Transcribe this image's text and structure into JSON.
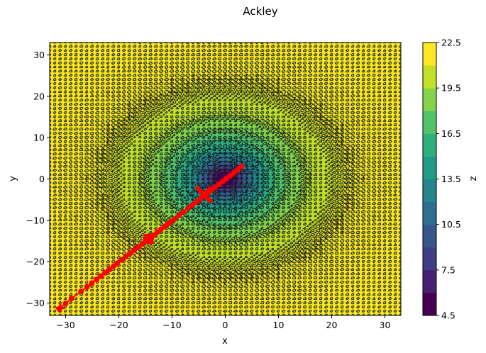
{
  "chart_data": {
    "type": "contour",
    "title": "Ackley",
    "xlabel": "x",
    "ylabel": "y",
    "colorbar_label": "z",
    "xlim": [
      -33,
      33
    ],
    "ylim": [
      -33,
      33
    ],
    "xticks": [
      -30,
      -20,
      -10,
      0,
      10,
      20,
      30
    ],
    "yticks": [
      -30,
      -20,
      -10,
      0,
      10,
      20,
      30
    ],
    "colorbar_range": [
      4.5,
      22.5
    ],
    "colorbar_ticks": [
      4.5,
      7.5,
      10.5,
      13.5,
      16.5,
      19.5,
      22.5
    ],
    "contour_levels": [
      4.5,
      6.0,
      7.5,
      9.0,
      10.5,
      12.0,
      13.5,
      15.0,
      16.5,
      18.0,
      19.5,
      21.0,
      22.5
    ],
    "colormap": "viridis",
    "function": "ackley",
    "path_color": "#ff0000",
    "path": {
      "x": [
        -31.2,
        -30.0,
        -28.9,
        -27.1,
        -26.0,
        -25.1,
        -24.2,
        -23.4,
        -22.6,
        -21.8,
        -21.0,
        -20.3,
        -19.5,
        -18.7,
        -17.9,
        -17.1,
        -16.4,
        -15.6,
        -14.9,
        -14.2,
        -13.5,
        -12.8,
        -12.1,
        -11.4,
        -10.8,
        -10.2,
        -9.6,
        -8.7,
        -7.9,
        -7.0,
        -6.2,
        -5.5,
        -4.7,
        -4.0,
        -3.3,
        -2.6,
        -1.9,
        -1.2,
        -0.5,
        0.2,
        0.9,
        1.6,
        2.3,
        3.0
      ],
      "y": [
        -31.4,
        -30.1,
        -28.9,
        -27.2,
        -26.1,
        -25.2,
        -24.3,
        -23.5,
        -22.7,
        -21.9,
        -21.1,
        -20.4,
        -19.6,
        -18.8,
        -18.0,
        -17.2,
        -16.5,
        -15.7,
        -15.0,
        -14.3,
        -13.6,
        -12.9,
        -12.2,
        -11.5,
        -10.9,
        -10.3,
        -9.7,
        -8.8,
        -8.0,
        -7.1,
        -6.3,
        -5.6,
        -4.8,
        -4.1,
        -3.4,
        -2.7,
        -2.0,
        -1.3,
        -0.6,
        0.1,
        0.8,
        1.5,
        2.2,
        3.0
      ]
    },
    "markers": [
      {
        "shape": "x-large",
        "x": -4.0,
        "y": -3.8
      },
      {
        "shape": "square",
        "x": -14.4,
        "y": -14.5
      },
      {
        "shape": "plus",
        "x": -31.0,
        "y": -31.2
      }
    ],
    "grid": false,
    "legend": "none"
  }
}
